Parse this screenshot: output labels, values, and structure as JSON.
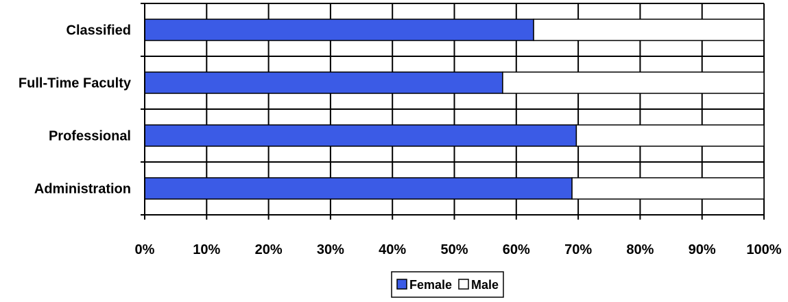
{
  "chart_data": {
    "type": "bar",
    "orientation": "horizontal",
    "stacked": true,
    "categories": [
      "Classified",
      "Full-Time Faculty",
      "Professional",
      "Administration"
    ],
    "series": [
      {
        "name": "Female",
        "color": "#3B5BE6",
        "values": [
          62.8,
          57.8,
          69.7,
          69.0
        ]
      },
      {
        "name": "Male",
        "color": "#FFFFFF",
        "values": [
          37.2,
          42.2,
          30.3,
          31.0
        ]
      }
    ],
    "xlim": [
      0,
      100
    ],
    "x_ticks": [
      "0%",
      "10%",
      "20%",
      "30%",
      "40%",
      "50%",
      "60%",
      "70%",
      "80%",
      "90%",
      "100%"
    ],
    "grid": true,
    "legend_position": "bottom-center",
    "title": "",
    "xlabel": "",
    "ylabel": ""
  }
}
